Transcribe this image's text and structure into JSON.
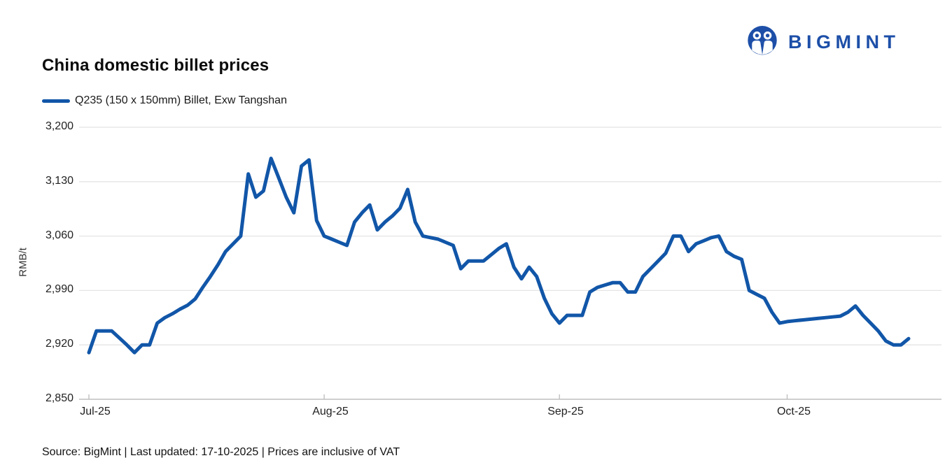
{
  "header": {
    "title": "China domestic billet prices",
    "brand": {
      "name": "BIGMINT"
    }
  },
  "legend": {
    "series_label": "Q235 (150 x 150mm) Billet, Exw Tangshan"
  },
  "footer": {
    "text": "Source: BigMint | Last updated: 17-10-2025 | Prices are inclusive of VAT"
  },
  "colors": {
    "line": "#1156A8",
    "logo": "#1D4FA8",
    "gridline": "#E4E4E4",
    "axis": "#BFBFBF",
    "tick": "#C0C0C0"
  },
  "chart_data": {
    "type": "line",
    "title": "China domestic billet prices",
    "xlabel": "",
    "ylabel": "RMB/t",
    "ylim": [
      2850,
      3200
    ],
    "y_ticks": [
      3200,
      3130,
      3060,
      2990,
      2920,
      2850
    ],
    "y_tick_labels": [
      "3,200",
      "3,130",
      "3,060",
      "2,990",
      "2,920",
      "2,850"
    ],
    "x_ticks": [
      {
        "label": "Jul-25",
        "day": 0
      },
      {
        "label": "Aug-25",
        "day": 31
      },
      {
        "label": "Sep-25",
        "day": 62
      },
      {
        "label": "Oct-25",
        "day": 92
      }
    ],
    "grid": "horizontal",
    "legend_position": "top-left",
    "series": [
      {
        "name": "Q235 (150 x 150mm) Billet, Exw Tangshan",
        "unit": "RMB/t",
        "start_date": "2025-07-01",
        "end_date": "2025-10-17",
        "frequency": "daily",
        "values": [
          2910,
          2938,
          2938,
          2938,
          2929,
          2920,
          2910,
          2920,
          2920,
          2948,
          2955,
          2960,
          2966,
          2971,
          2979,
          2994,
          3008,
          3023,
          3040,
          3050,
          3060,
          3140,
          3110,
          3118,
          3160,
          3135,
          3110,
          3090,
          3150,
          3158,
          3080,
          3060,
          3056,
          3052,
          3048,
          3078,
          3090,
          3100,
          3068,
          3078,
          3086,
          3096,
          3120,
          3078,
          3060,
          3058,
          3056,
          3052,
          3048,
          3018,
          3028,
          3028,
          3028,
          3036,
          3044,
          3050,
          3020,
          3005,
          3020,
          3008,
          2980,
          2960,
          2948,
          2958,
          2958,
          2958,
          2988,
          2994,
          2997,
          3000,
          3000,
          2988,
          2988,
          3008,
          3018,
          3028,
          3038,
          3060,
          3060,
          3040,
          3050,
          3054,
          3058,
          3060,
          3040,
          3034,
          3030,
          2990,
          2985,
          2980,
          2962,
          2948,
          2950,
          2951,
          2952,
          2953,
          2954,
          2955,
          2956,
          2957,
          2962,
          2970,
          2958,
          2948,
          2938,
          2925,
          2920,
          2920,
          2928
        ]
      }
    ]
  }
}
